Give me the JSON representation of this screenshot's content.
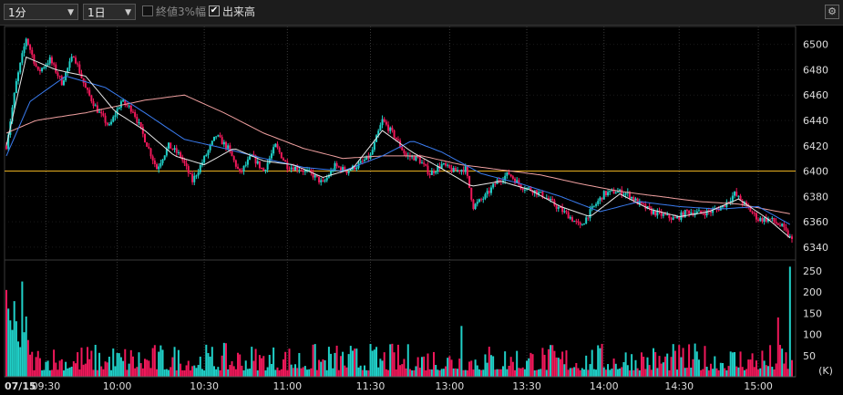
{
  "toolbar": {
    "interval": "1分",
    "period": "1日",
    "close3_label": "終値3%幅",
    "close3_checked": false,
    "volume_label": "出来高",
    "volume_checked": true,
    "settings_icon": "gear-icon"
  },
  "colors": {
    "background": "#000000",
    "up": "#20d0c8",
    "down": "#f0185a",
    "ma_short": "#e8e8e8",
    "ma_mid": "#3a7cf0",
    "ma_long": "#f0a0a0",
    "reference_line": "#e8b020"
  },
  "chart_data": [
    {
      "type": "candlestick",
      "date_label": "07/15",
      "x_ticks": [
        "09:30",
        "10:00",
        "10:30",
        "11:00",
        "11:30",
        "13:00",
        "13:30",
        "14:00",
        "14:30",
        "15:00"
      ],
      "y_ticks": [
        6340,
        6360,
        6380,
        6400,
        6420,
        6440,
        6460,
        6480,
        6500
      ],
      "ylim": [
        6332,
        6512
      ],
      "reference_line": 6400,
      "price_path": [
        {
          "t": 0,
          "p": 6420
        },
        {
          "t": 5,
          "p": 6470
        },
        {
          "t": 10,
          "p": 6505
        },
        {
          "t": 16,
          "p": 6478
        },
        {
          "t": 22,
          "p": 6488
        },
        {
          "t": 28,
          "p": 6470
        },
        {
          "t": 34,
          "p": 6492
        },
        {
          "t": 40,
          "p": 6465
        },
        {
          "t": 46,
          "p": 6448
        },
        {
          "t": 52,
          "p": 6435
        },
        {
          "t": 58,
          "p": 6455
        },
        {
          "t": 64,
          "p": 6448
        },
        {
          "t": 70,
          "p": 6425
        },
        {
          "t": 76,
          "p": 6402
        },
        {
          "t": 82,
          "p": 6420
        },
        {
          "t": 88,
          "p": 6412
        },
        {
          "t": 94,
          "p": 6392
        },
        {
          "t": 100,
          "p": 6410
        },
        {
          "t": 106,
          "p": 6428
        },
        {
          "t": 112,
          "p": 6418
        },
        {
          "t": 118,
          "p": 6398
        },
        {
          "t": 124,
          "p": 6412
        },
        {
          "t": 130,
          "p": 6400
        },
        {
          "t": 136,
          "p": 6420
        },
        {
          "t": 142,
          "p": 6404
        },
        {
          "t": 148,
          "p": 6402
        },
        {
          "t": 154,
          "p": 6398
        },
        {
          "t": 160,
          "p": 6390
        },
        {
          "t": 166,
          "p": 6404
        },
        {
          "t": 172,
          "p": 6400
        },
        {
          "t": 178,
          "p": 6405
        },
        {
          "t": 184,
          "p": 6412
        },
        {
          "t": 190,
          "p": 6440
        },
        {
          "t": 196,
          "p": 6428
        },
        {
          "t": 202,
          "p": 6412
        },
        {
          "t": 208,
          "p": 6410
        },
        {
          "t": 214,
          "p": 6398
        },
        {
          "t": 220,
          "p": 6405
        },
        {
          "t": 226,
          "p": 6400
        },
        {
          "t": 232,
          "p": 6402
        },
        {
          "t": 236,
          "p": 6372
        },
        {
          "t": 242,
          "p": 6380
        },
        {
          "t": 248,
          "p": 6392
        },
        {
          "t": 254,
          "p": 6398
        },
        {
          "t": 260,
          "p": 6388
        },
        {
          "t": 266,
          "p": 6385
        },
        {
          "t": 272,
          "p": 6380
        },
        {
          "t": 278,
          "p": 6372
        },
        {
          "t": 284,
          "p": 6365
        },
        {
          "t": 290,
          "p": 6356
        },
        {
          "t": 296,
          "p": 6370
        },
        {
          "t": 302,
          "p": 6382
        },
        {
          "t": 308,
          "p": 6384
        },
        {
          "t": 314,
          "p": 6382
        },
        {
          "t": 320,
          "p": 6374
        },
        {
          "t": 326,
          "p": 6368
        },
        {
          "t": 332,
          "p": 6365
        },
        {
          "t": 338,
          "p": 6362
        },
        {
          "t": 344,
          "p": 6368
        },
        {
          "t": 350,
          "p": 6367
        },
        {
          "t": 356,
          "p": 6368
        },
        {
          "t": 362,
          "p": 6372
        },
        {
          "t": 368,
          "p": 6382
        },
        {
          "t": 374,
          "p": 6372
        },
        {
          "t": 380,
          "p": 6362
        },
        {
          "t": 386,
          "p": 6362
        },
        {
          "t": 392,
          "p": 6356
        },
        {
          "t": 397,
          "p": 6345
        }
      ],
      "indicators": {
        "ma_short": [
          {
            "t": 0,
            "p": 6420
          },
          {
            "t": 10,
            "p": 6490
          },
          {
            "t": 25,
            "p": 6480
          },
          {
            "t": 40,
            "p": 6475
          },
          {
            "t": 55,
            "p": 6447
          },
          {
            "t": 70,
            "p": 6432
          },
          {
            "t": 85,
            "p": 6412
          },
          {
            "t": 100,
            "p": 6405
          },
          {
            "t": 115,
            "p": 6418
          },
          {
            "t": 130,
            "p": 6408
          },
          {
            "t": 145,
            "p": 6405
          },
          {
            "t": 160,
            "p": 6395
          },
          {
            "t": 175,
            "p": 6402
          },
          {
            "t": 190,
            "p": 6432
          },
          {
            "t": 205,
            "p": 6415
          },
          {
            "t": 220,
            "p": 6402
          },
          {
            "t": 235,
            "p": 6388
          },
          {
            "t": 250,
            "p": 6392
          },
          {
            "t": 265,
            "p": 6385
          },
          {
            "t": 280,
            "p": 6372
          },
          {
            "t": 295,
            "p": 6364
          },
          {
            "t": 310,
            "p": 6382
          },
          {
            "t": 325,
            "p": 6370
          },
          {
            "t": 340,
            "p": 6364
          },
          {
            "t": 355,
            "p": 6368
          },
          {
            "t": 370,
            "p": 6378
          },
          {
            "t": 385,
            "p": 6362
          },
          {
            "t": 397,
            "p": 6346
          }
        ],
        "ma_mid": [
          {
            "t": 0,
            "p": 6412
          },
          {
            "t": 12,
            "p": 6455
          },
          {
            "t": 30,
            "p": 6475
          },
          {
            "t": 50,
            "p": 6466
          },
          {
            "t": 70,
            "p": 6446
          },
          {
            "t": 90,
            "p": 6425
          },
          {
            "t": 110,
            "p": 6418
          },
          {
            "t": 130,
            "p": 6410
          },
          {
            "t": 150,
            "p": 6403
          },
          {
            "t": 170,
            "p": 6400
          },
          {
            "t": 190,
            "p": 6412
          },
          {
            "t": 205,
            "p": 6424
          },
          {
            "t": 220,
            "p": 6415
          },
          {
            "t": 240,
            "p": 6398
          },
          {
            "t": 260,
            "p": 6390
          },
          {
            "t": 280,
            "p": 6380
          },
          {
            "t": 300,
            "p": 6368
          },
          {
            "t": 320,
            "p": 6376
          },
          {
            "t": 340,
            "p": 6372
          },
          {
            "t": 360,
            "p": 6370
          },
          {
            "t": 380,
            "p": 6372
          },
          {
            "t": 397,
            "p": 6357
          }
        ],
        "ma_long": [
          {
            "t": 0,
            "p": 6430
          },
          {
            "t": 15,
            "p": 6440
          },
          {
            "t": 40,
            "p": 6446
          },
          {
            "t": 70,
            "p": 6456
          },
          {
            "t": 90,
            "p": 6460
          },
          {
            "t": 110,
            "p": 6446
          },
          {
            "t": 130,
            "p": 6430
          },
          {
            "t": 150,
            "p": 6418
          },
          {
            "t": 170,
            "p": 6410
          },
          {
            "t": 190,
            "p": 6412
          },
          {
            "t": 210,
            "p": 6412
          },
          {
            "t": 230,
            "p": 6405
          },
          {
            "t": 250,
            "p": 6401
          },
          {
            "t": 270,
            "p": 6397
          },
          {
            "t": 290,
            "p": 6390
          },
          {
            "t": 310,
            "p": 6384
          },
          {
            "t": 330,
            "p": 6380
          },
          {
            "t": 350,
            "p": 6376
          },
          {
            "t": 370,
            "p": 6374
          },
          {
            "t": 397,
            "p": 6366
          }
        ]
      }
    },
    {
      "type": "bar",
      "title": "volume",
      "unit_label": "(K)",
      "y_ticks": [
        50,
        100,
        150,
        200,
        250
      ],
      "ylim": [
        0,
        265
      ],
      "notable": [
        {
          "t": 0,
          "v": 205
        },
        {
          "t": 8,
          "v": 225
        },
        {
          "t": 7,
          "v": 70
        },
        {
          "t": 230,
          "v": 120
        },
        {
          "t": 390,
          "v": 140
        },
        {
          "t": 396,
          "v": 260
        }
      ],
      "baseline_range": [
        15,
        80
      ]
    }
  ]
}
